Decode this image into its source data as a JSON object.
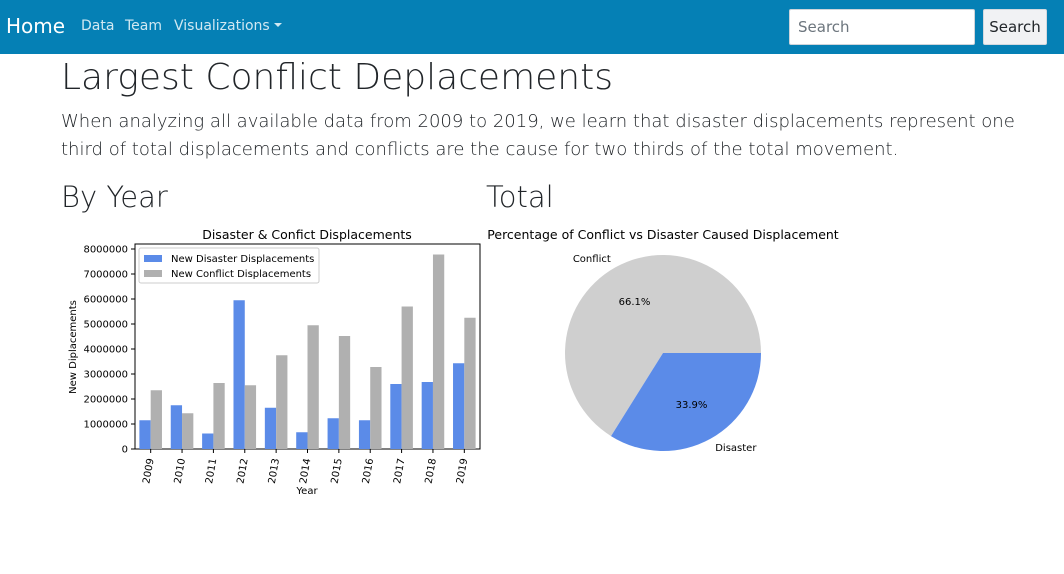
{
  "navbar": {
    "brand": "Home",
    "links": [
      "Data",
      "Team",
      "Visualizations"
    ],
    "search_placeholder": "Search",
    "search_button": "Search"
  },
  "page": {
    "title": "Largest Conflict Deplacements",
    "lead": "When analyzing all available data from 2009 to 2019, we learn that disaster displacements represent one third of total displacements and conflicts are the cause for two thirds of the total movement.",
    "section_year": "By Year",
    "section_total": "Total"
  },
  "colors": {
    "navbar": "#0580b5",
    "disaster": "#5b8be8",
    "conflict": "#b0b0b0",
    "pie_conflict": "#cfcfcf"
  },
  "chart_data": [
    {
      "type": "bar",
      "title": "Disaster & Confict Displacements",
      "xlabel": "Year",
      "ylabel": "New Diplacements",
      "categories": [
        "2009",
        "2010",
        "2011",
        "2012",
        "2013",
        "2014",
        "2015",
        "2016",
        "2017",
        "2018",
        "2019"
      ],
      "series": [
        {
          "name": "New Disaster Displacements",
          "values": [
            1150000,
            1750000,
            620000,
            5950000,
            1650000,
            670000,
            1230000,
            1150000,
            2600000,
            2680000,
            3430000
          ]
        },
        {
          "name": "New Conflict Displacements",
          "values": [
            2350000,
            1430000,
            2640000,
            2550000,
            3750000,
            4950000,
            4520000,
            3280000,
            5700000,
            7780000,
            5250000
          ]
        }
      ],
      "ylim": [
        0,
        8200000
      ],
      "yticks": [
        0,
        1000000,
        2000000,
        3000000,
        4000000,
        5000000,
        6000000,
        7000000,
        8000000
      ],
      "legend": "upper-left",
      "grid": false
    },
    {
      "type": "pie",
      "title": "Percentage of Conflict vs Disaster Caused Displacement",
      "labels": [
        "Conflict",
        "Disaster"
      ],
      "values": [
        66.1,
        33.9
      ],
      "autopct": [
        "66.1%",
        "33.9%"
      ]
    }
  ]
}
